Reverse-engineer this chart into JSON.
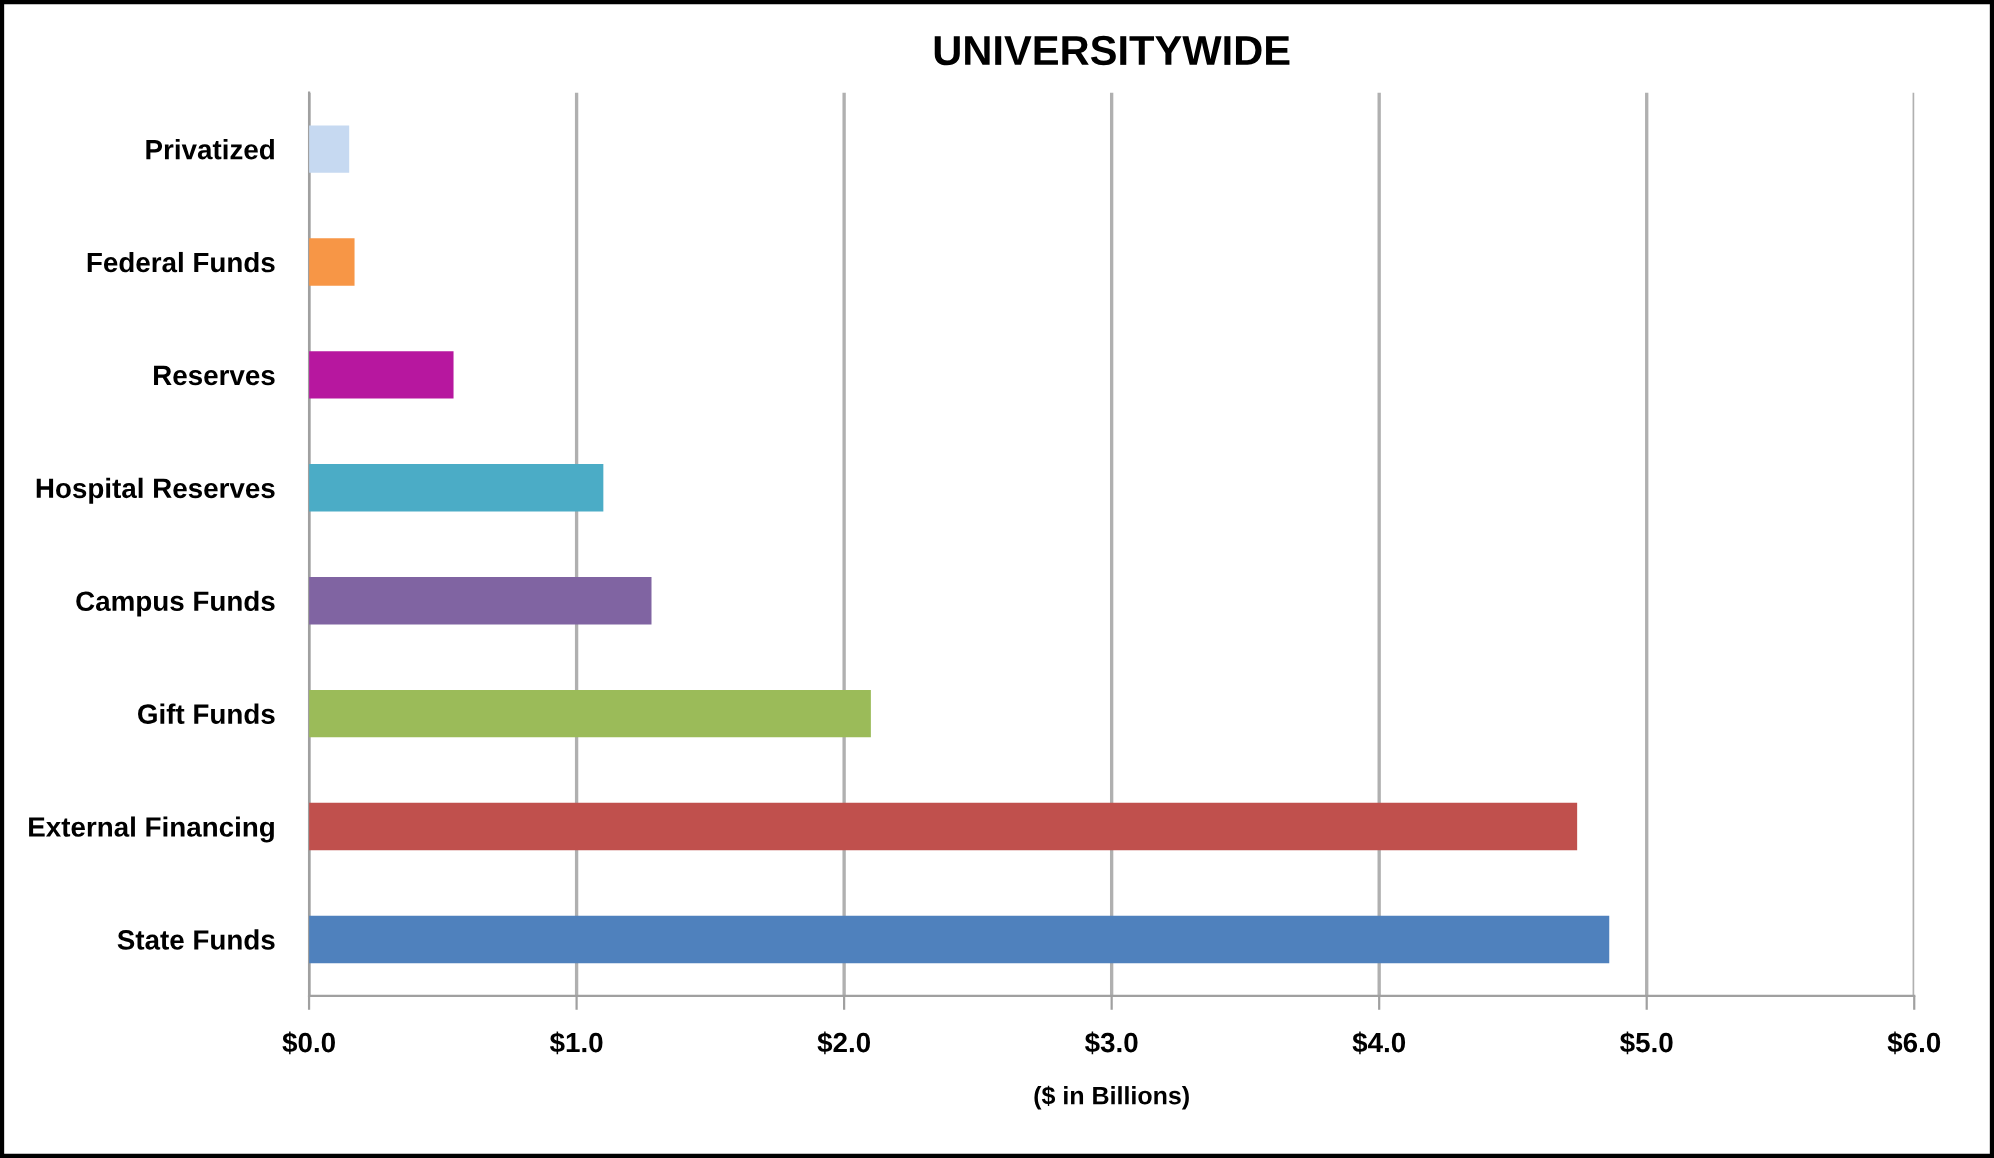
{
  "chart_data": {
    "type": "bar",
    "orientation": "horizontal",
    "title": "UNIVERSITYWIDE",
    "xlabel": "($ in Billions)",
    "categories": [
      "Privatized",
      "Federal Funds",
      "Reserves",
      "Hospital Reserves",
      "Campus Funds",
      "Gift Funds",
      "External Financing",
      "State Funds"
    ],
    "values": [
      0.15,
      0.17,
      0.54,
      1.1,
      1.28,
      2.1,
      4.74,
      4.86
    ],
    "colors": [
      "#c6d9f1",
      "#f79646",
      "#b7179f",
      "#4bacc6",
      "#8064a2",
      "#9bbb59",
      "#c0504d",
      "#4f81bd"
    ],
    "xlim": [
      0,
      6
    ],
    "xticks": [
      {
        "value": 0,
        "label": "$0.0"
      },
      {
        "value": 1,
        "label": "$1.0"
      },
      {
        "value": 2,
        "label": "$2.0"
      },
      {
        "value": 3,
        "label": "$3.0"
      },
      {
        "value": 4,
        "label": "$4.0"
      },
      {
        "value": 5,
        "label": "$5.0"
      },
      {
        "value": 6,
        "label": "$6.0"
      }
    ],
    "grid": "x",
    "legend": false
  }
}
